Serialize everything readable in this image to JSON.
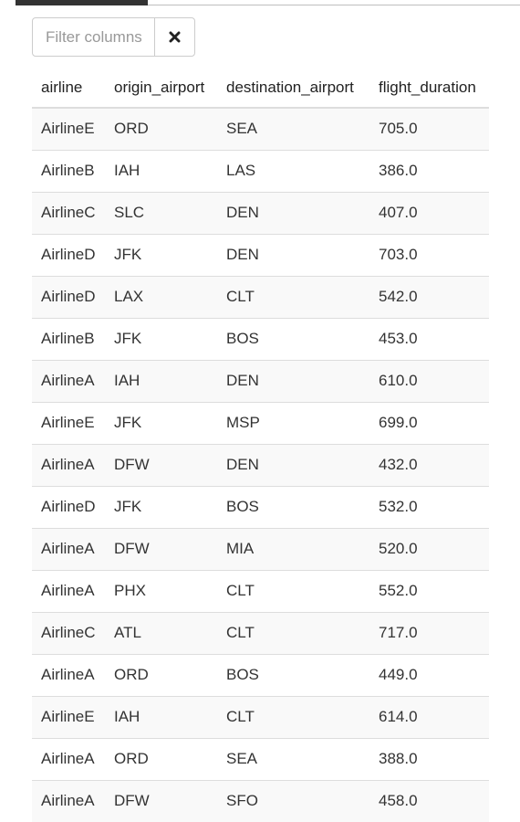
{
  "filter": {
    "placeholder": "Filter columns",
    "value": "",
    "clear_icon": "close-icon"
  },
  "table": {
    "columns": [
      "airline",
      "origin_airport",
      "destination_airport",
      "flight_duration"
    ],
    "rows": [
      [
        "AirlineE",
        "ORD",
        "SEA",
        "705.0"
      ],
      [
        "AirlineB",
        "IAH",
        "LAS",
        "386.0"
      ],
      [
        "AirlineC",
        "SLC",
        "DEN",
        "407.0"
      ],
      [
        "AirlineD",
        "JFK",
        "DEN",
        "703.0"
      ],
      [
        "AirlineD",
        "LAX",
        "CLT",
        "542.0"
      ],
      [
        "AirlineB",
        "JFK",
        "BOS",
        "453.0"
      ],
      [
        "AirlineA",
        "IAH",
        "DEN",
        "610.0"
      ],
      [
        "AirlineE",
        "JFK",
        "MSP",
        "699.0"
      ],
      [
        "AirlineA",
        "DFW",
        "DEN",
        "432.0"
      ],
      [
        "AirlineD",
        "JFK",
        "BOS",
        "532.0"
      ],
      [
        "AirlineA",
        "DFW",
        "MIA",
        "520.0"
      ],
      [
        "AirlineA",
        "PHX",
        "CLT",
        "552.0"
      ],
      [
        "AirlineC",
        "ATL",
        "CLT",
        "717.0"
      ],
      [
        "AirlineA",
        "ORD",
        "BOS",
        "449.0"
      ],
      [
        "AirlineE",
        "IAH",
        "CLT",
        "614.0"
      ],
      [
        "AirlineA",
        "ORD",
        "SEA",
        "388.0"
      ],
      [
        "AirlineA",
        "DFW",
        "SFO",
        "458.0"
      ]
    ]
  }
}
